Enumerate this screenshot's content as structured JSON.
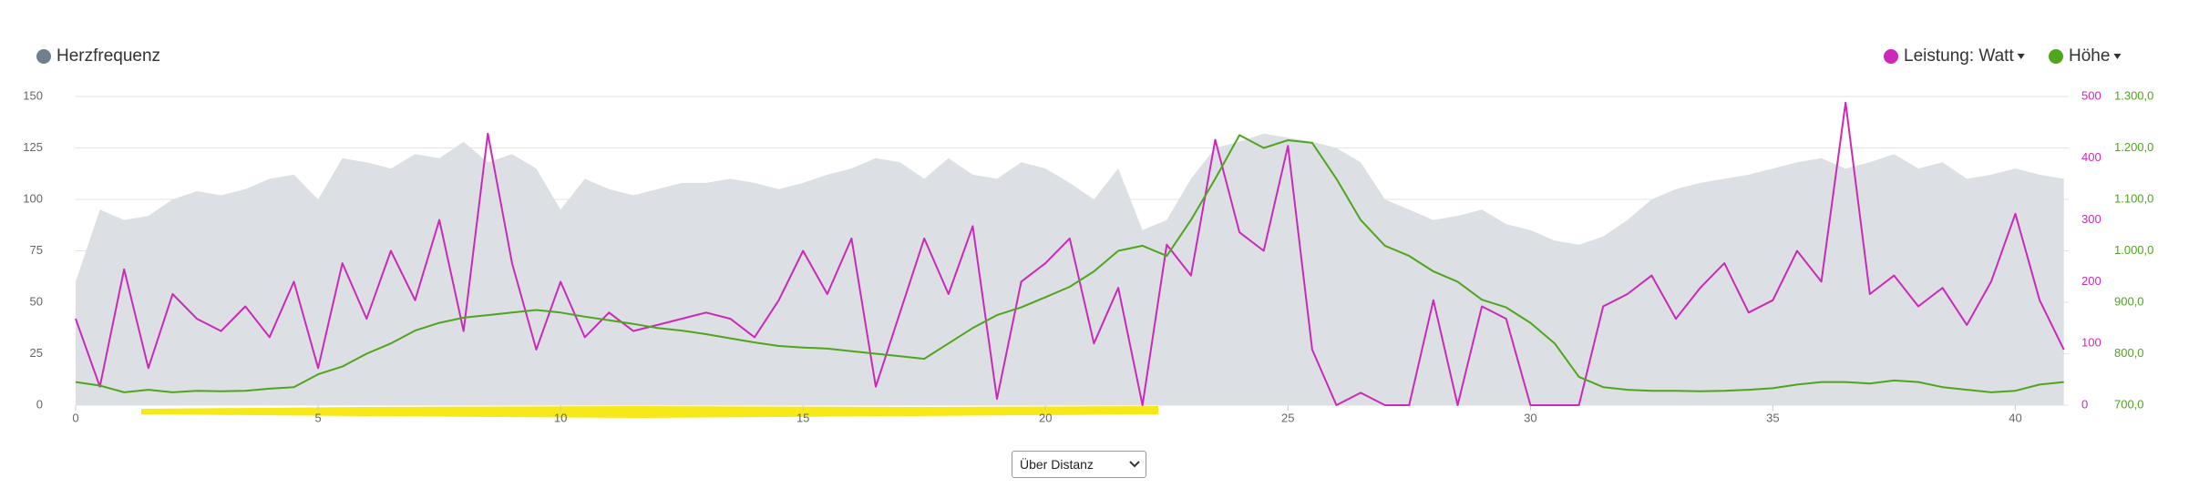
{
  "chart_data": {
    "type": "line",
    "x": [
      0,
      0.5,
      1,
      1.5,
      2,
      2.5,
      3,
      3.5,
      4,
      4.5,
      5,
      5.5,
      6,
      6.5,
      7,
      7.5,
      8,
      8.5,
      9,
      9.5,
      10,
      10.5,
      11,
      11.5,
      12,
      12.5,
      13,
      13.5,
      14,
      14.5,
      15,
      15.5,
      16,
      16.5,
      17,
      17.5,
      18,
      18.5,
      19,
      19.5,
      20,
      20.5,
      21,
      21.5,
      22,
      22.5,
      23,
      23.5,
      24,
      24.5,
      25,
      25.5,
      26,
      26.5,
      27,
      27.5,
      28,
      28.5,
      29,
      29.5,
      30,
      30.5,
      31,
      31.5,
      32,
      32.5,
      33,
      33.5,
      34,
      34.5,
      35,
      35.5,
      36,
      36.5,
      37,
      37.5,
      38,
      38.5,
      39,
      39.5,
      40,
      40.5,
      41
    ],
    "series": [
      {
        "name": "Herzfrequenz",
        "color": "#dcdfe3",
        "legend_color": "#6e7f8f",
        "style": "area",
        "axis": "y",
        "values": [
          60,
          95,
          90,
          92,
          100,
          104,
          102,
          105,
          110,
          112,
          100,
          120,
          118,
          115,
          122,
          120,
          128,
          118,
          122,
          115,
          95,
          110,
          105,
          102,
          105,
          108,
          108,
          110,
          108,
          105,
          108,
          112,
          115,
          120,
          118,
          110,
          120,
          112,
          110,
          118,
          115,
          108,
          100,
          115,
          85,
          90,
          110,
          125,
          128,
          132,
          130,
          128,
          125,
          118,
          100,
          95,
          90,
          92,
          95,
          88,
          85,
          80,
          78,
          82,
          90,
          100,
          105,
          108,
          110,
          112,
          115,
          118,
          120,
          115,
          118,
          122,
          115,
          118,
          110,
          112,
          115,
          112,
          110
        ]
      },
      {
        "name": "Leistung: Watt",
        "color": "#cc29b9",
        "style": "line",
        "axis": "y2",
        "values": [
          140,
          30,
          220,
          60,
          180,
          140,
          120,
          160,
          110,
          200,
          60,
          230,
          140,
          250,
          170,
          300,
          120,
          440,
          230,
          90,
          200,
          110,
          150,
          120,
          130,
          140,
          150,
          140,
          110,
          170,
          250,
          180,
          270,
          30,
          150,
          270,
          180,
          290,
          10,
          200,
          230,
          270,
          100,
          190,
          0,
          260,
          210,
          430,
          280,
          250,
          420,
          90,
          0,
          20,
          0,
          0,
          170,
          0,
          160,
          140,
          0,
          0,
          0,
          160,
          180,
          210,
          140,
          190,
          230,
          150,
          170,
          250,
          200,
          490,
          180,
          210,
          160,
          190,
          130,
          200,
          310,
          170,
          90
        ]
      },
      {
        "name": "Höhe",
        "color": "#4fa51c",
        "style": "line",
        "axis": "y3",
        "values": [
          745,
          738,
          725,
          730,
          725,
          728,
          727,
          728,
          732,
          735,
          760,
          775,
          800,
          820,
          845,
          860,
          870,
          875,
          880,
          885,
          880,
          872,
          865,
          858,
          850,
          845,
          838,
          830,
          822,
          815,
          812,
          810,
          805,
          800,
          795,
          790,
          820,
          850,
          875,
          890,
          910,
          930,
          960,
          1000,
          1010,
          990,
          1060,
          1140,
          1225,
          1200,
          1215,
          1210,
          1140,
          1060,
          1010,
          990,
          960,
          940,
          905,
          890,
          860,
          820,
          755,
          735,
          730,
          728,
          728,
          727,
          728,
          730,
          733,
          740,
          745,
          745,
          742,
          748,
          745,
          735,
          730,
          725,
          728,
          740,
          745
        ]
      }
    ],
    "xlim": [
      0,
      41.1
    ],
    "xticks": [
      0,
      5,
      10,
      15,
      20,
      25,
      30,
      35,
      40
    ],
    "ylim": [
      0,
      150
    ],
    "yticks": [
      0,
      25,
      50,
      75,
      100,
      125,
      150
    ],
    "y2lim": [
      0,
      500
    ],
    "y2ticks": [
      0,
      100,
      200,
      300,
      400,
      500
    ],
    "y3lim": [
      700,
      1300
    ],
    "y3ticks": [
      {
        "value": 700,
        "label": "700,0"
      },
      {
        "value": 800,
        "label": "800,0"
      },
      {
        "value": 900,
        "label": "900,0"
      },
      {
        "value": 1000,
        "label": "1.000,0"
      },
      {
        "value": 1100,
        "label": "1.100,0"
      },
      {
        "value": 1200,
        "label": "1.200,0"
      },
      {
        "value": 1300,
        "label": "1.300,0"
      }
    ],
    "grid": true
  },
  "x_mode_selector": {
    "selected": "Über Distanz"
  }
}
